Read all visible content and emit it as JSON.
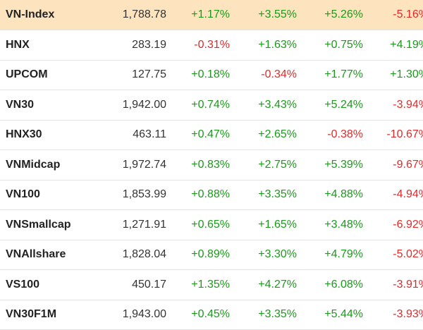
{
  "colors": {
    "positive": "#1a9a1a",
    "negative": "#e02a2a",
    "highlight_row": "#fde4bf"
  },
  "rows": [
    {
      "name": "VN-Index",
      "price": "1,788.78",
      "changes": [
        "+1.17%",
        "+3.55%",
        "+5.26%",
        "-5.16%"
      ],
      "highlight": true
    },
    {
      "name": "HNX",
      "price": "283.19",
      "changes": [
        "-0.31%",
        "+1.63%",
        "+0.75%",
        "+4.19%"
      ]
    },
    {
      "name": "UPCOM",
      "price": "127.75",
      "changes": [
        "+0.18%",
        "-0.34%",
        "+1.77%",
        "+1.30%"
      ]
    },
    {
      "name": "VN30",
      "price": "1,942.00",
      "changes": [
        "+0.74%",
        "+3.43%",
        "+5.24%",
        "-3.94%"
      ]
    },
    {
      "name": "HNX30",
      "price": "463.11",
      "changes": [
        "+0.47%",
        "+2.65%",
        "-0.38%",
        "-10.67%"
      ]
    },
    {
      "name": "VNMidcap",
      "price": "1,972.74",
      "changes": [
        "+0.83%",
        "+2.75%",
        "+5.39%",
        "-9.67%"
      ]
    },
    {
      "name": "VN100",
      "price": "1,853.99",
      "changes": [
        "+0.88%",
        "+3.35%",
        "+4.88%",
        "-4.94%"
      ]
    },
    {
      "name": "VNSmallcap",
      "price": "1,271.91",
      "changes": [
        "+0.65%",
        "+1.65%",
        "+3.48%",
        "-6.92%"
      ]
    },
    {
      "name": "VNAllshare",
      "price": "1,828.04",
      "changes": [
        "+0.89%",
        "+3.30%",
        "+4.79%",
        "-5.02%"
      ]
    },
    {
      "name": "VS100",
      "price": "450.17",
      "changes": [
        "+1.35%",
        "+4.27%",
        "+6.08%",
        "-3.91%"
      ]
    },
    {
      "name": "VN30F1M",
      "price": "1,943.00",
      "changes": [
        "+0.45%",
        "+3.35%",
        "+5.44%",
        "-3.93%"
      ]
    }
  ]
}
